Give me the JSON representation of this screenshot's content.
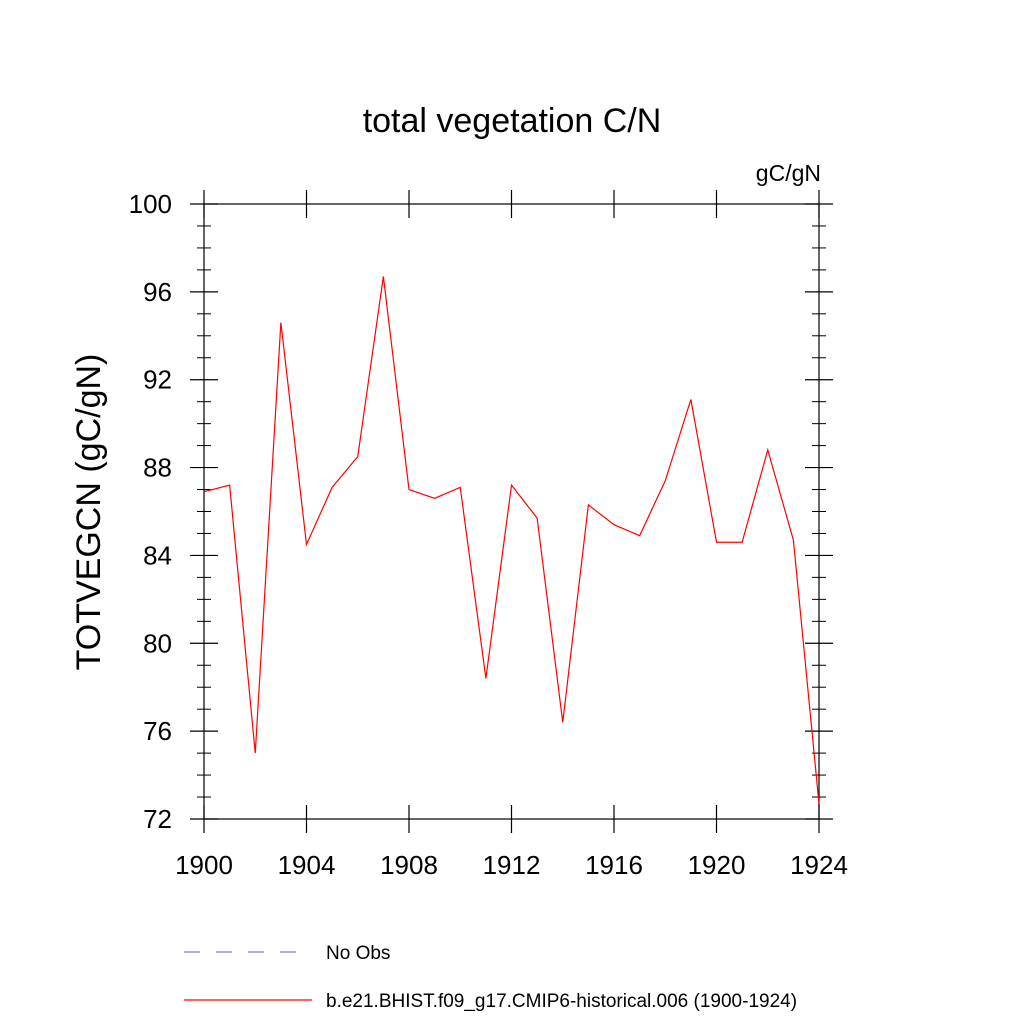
{
  "chart_data": {
    "type": "line",
    "title": "total vegetation C/N",
    "units": "gC/gN",
    "ylabel": "TOTVEGCN  (gC/gN)",
    "xlabel": "",
    "xlim": [
      1900,
      1924
    ],
    "ylim": [
      72,
      100
    ],
    "x_ticks": [
      1900,
      1904,
      1908,
      1912,
      1916,
      1920,
      1924
    ],
    "y_ticks": [
      72,
      76,
      80,
      84,
      88,
      92,
      96,
      100
    ],
    "series": [
      {
        "name": "b.e21.BHIST.f09_g17.CMIP6-historical.006 (1900-1924)",
        "color": "#ff0000",
        "x": [
          1900,
          1901,
          1902,
          1903,
          1904,
          1905,
          1906,
          1907,
          1908,
          1909,
          1910,
          1911,
          1912,
          1913,
          1914,
          1915,
          1916,
          1917,
          1918,
          1919,
          1920,
          1921,
          1922,
          1923,
          1924
        ],
        "values": [
          86.9,
          87.2,
          75.0,
          94.6,
          84.5,
          87.1,
          88.5,
          96.7,
          87.0,
          86.6,
          87.1,
          78.4,
          87.2,
          85.7,
          76.4,
          86.3,
          85.4,
          84.9,
          87.4,
          91.1,
          84.6,
          84.6,
          88.8,
          84.7,
          72.7
        ]
      }
    ],
    "legend": [
      {
        "label": "No Obs",
        "style": "dashed",
        "color": "#8080c0"
      },
      {
        "label": "b.e21.BHIST.f09_g17.CMIP6-historical.006 (1900-1924)",
        "style": "solid",
        "color": "#ff0000"
      }
    ]
  }
}
